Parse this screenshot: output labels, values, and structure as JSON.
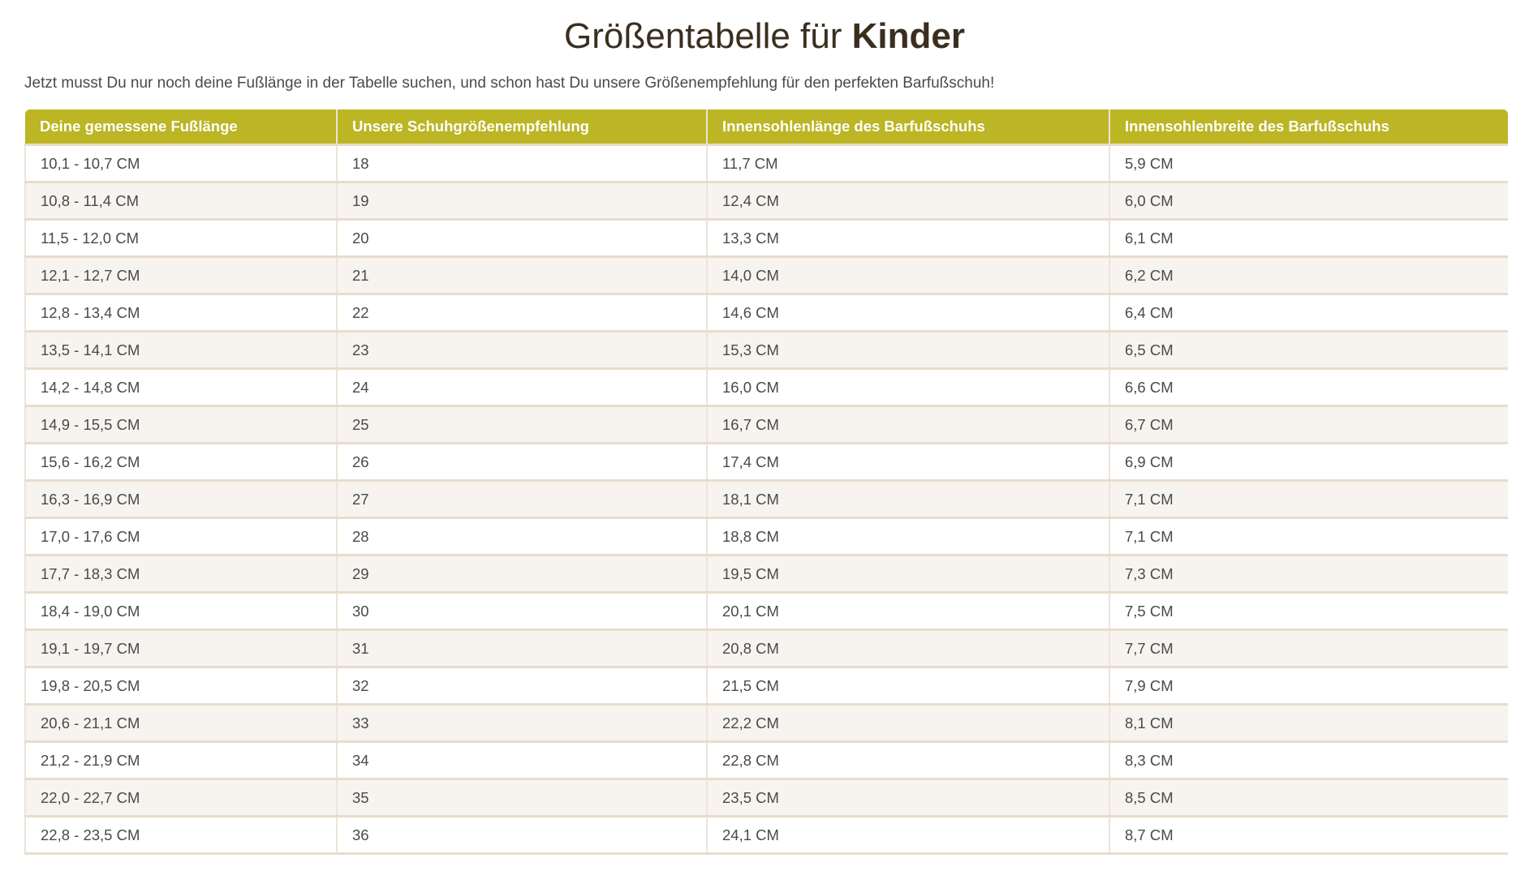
{
  "title": {
    "regular": "Größentabelle für",
    "bold": "Kinder"
  },
  "intro": "Jetzt musst Du nur noch deine Fußlänge in der Tabelle suchen, und schon hast Du unsere Größenempfehlung für den perfekten Barfußschuh!",
  "colors": {
    "header_bg": "#bcb524",
    "row_alt": "#f7f4ef",
    "border": "#e8dccc"
  },
  "table": {
    "headers": [
      "Deine gemessene Fußlänge",
      "Unsere Schuhgrößenempfehlung",
      "Innensohlenlänge des Barfußschuhs",
      "Innensohlenbreite des Barfußschuhs"
    ],
    "rows": [
      [
        "10,1 - 10,7 CM",
        "18",
        "11,7 CM",
        "5,9 CM"
      ],
      [
        "10,8 - 11,4 CM",
        "19",
        "12,4 CM",
        "6,0 CM"
      ],
      [
        "11,5 - 12,0 CM",
        "20",
        "13,3 CM",
        "6,1 CM"
      ],
      [
        "12,1 - 12,7 CM",
        "21",
        "14,0 CM",
        "6,2 CM"
      ],
      [
        "12,8 - 13,4 CM",
        "22",
        "14,6 CM",
        "6,4 CM"
      ],
      [
        "13,5 - 14,1 CM",
        "23",
        "15,3 CM",
        "6,5 CM"
      ],
      [
        "14,2 - 14,8 CM",
        "24",
        "16,0 CM",
        "6,6 CM"
      ],
      [
        "14,9 - 15,5 CM",
        "25",
        "16,7 CM",
        "6,7 CM"
      ],
      [
        "15,6 - 16,2 CM",
        "26",
        "17,4 CM",
        "6,9 CM"
      ],
      [
        "16,3 - 16,9 CM",
        "27",
        "18,1 CM",
        "7,1 CM"
      ],
      [
        "17,0 - 17,6 CM",
        "28",
        "18,8 CM",
        "7,1 CM"
      ],
      [
        "17,7 - 18,3 CM",
        "29",
        "19,5 CM",
        "7,3 CM"
      ],
      [
        "18,4 - 19,0 CM",
        "30",
        "20,1 CM",
        "7,5 CM"
      ],
      [
        "19,1 - 19,7 CM",
        "31",
        "20,8 CM",
        "7,7 CM"
      ],
      [
        "19,8 - 20,5 CM",
        "32",
        "21,5 CM",
        "7,9 CM"
      ],
      [
        "20,6 - 21,1 CM",
        "33",
        "22,2 CM",
        "8,1 CM"
      ],
      [
        "21,2 - 21,9 CM",
        "34",
        "22,8 CM",
        "8,3 CM"
      ],
      [
        "22,0 - 22,7 CM",
        "35",
        "23,5 CM",
        "8,5 CM"
      ],
      [
        "22,8 - 23,5 CM",
        "36",
        "24,1 CM",
        "8,7 CM"
      ]
    ]
  }
}
